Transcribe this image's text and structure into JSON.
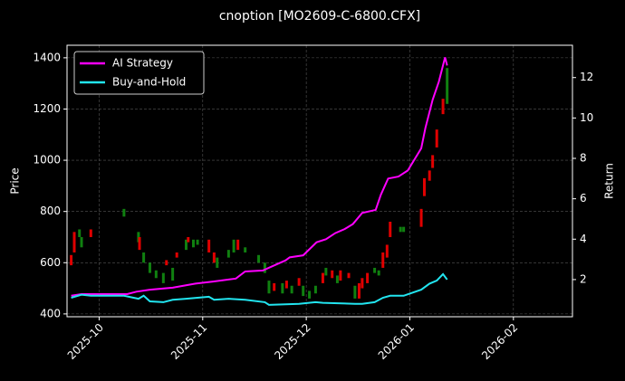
{
  "chart_data": {
    "type": "candlestick",
    "title": "cnoption [MO2609-C-6800.CFX]",
    "ylabel": "Price",
    "y2label": "Return",
    "xlim": [
      -0.31,
      4.57
    ],
    "xticks": [
      {
        "value": 0,
        "label": "2025-10"
      },
      {
        "value": 1,
        "label": "2025-11"
      },
      {
        "value": 2,
        "label": "2025-12"
      },
      {
        "value": 3,
        "label": "2026-01"
      },
      {
        "value": 4,
        "label": "2026-02"
      }
    ],
    "ylim": [
      389,
      1449
    ],
    "yticks": [
      400,
      600,
      800,
      1000,
      1200,
      1400
    ],
    "y2lim": [
      0.16,
      13.6
    ],
    "y2ticks": [
      2,
      4,
      6,
      8,
      10,
      12
    ],
    "grid": true,
    "legend": "upper left",
    "up_color": "#e00000",
    "down_color": "#108010",
    "x": [
      -0.27,
      -0.24,
      -0.19,
      -0.17,
      -0.08,
      0.24,
      0.38,
      0.39,
      0.43,
      0.49,
      0.55,
      0.62,
      0.65,
      0.71,
      0.75,
      0.84,
      0.86,
      0.91,
      0.95,
      1.06,
      1.11,
      1.14,
      1.25,
      1.3,
      1.34,
      1.41,
      1.54,
      1.6,
      1.64,
      1.69,
      1.77,
      1.81,
      1.86,
      1.93,
      1.97,
      2.03,
      2.09,
      2.16,
      2.19,
      2.25,
      2.3,
      2.33,
      2.41,
      2.47,
      2.51,
      2.54,
      2.59,
      2.66,
      2.7,
      2.74,
      2.78,
      2.81,
      2.91,
      2.94,
      3.11,
      3.14,
      3.19,
      3.22,
      3.26,
      3.32,
      3.36
    ],
    "open": [
      590,
      640,
      730,
      700,
      700,
      810,
      720,
      650,
      640,
      600,
      570,
      560,
      590,
      580,
      620,
      690,
      680,
      690,
      690,
      640,
      600,
      620,
      650,
      690,
      650,
      660,
      630,
      600,
      530,
      490,
      520,
      500,
      510,
      510,
      510,
      490,
      510,
      520,
      580,
      540,
      550,
      530,
      540,
      510,
      460,
      500,
      520,
      580,
      570,
      580,
      620,
      700,
      740,
      740,
      740,
      860,
      920,
      970,
      1050,
      1180,
      1360
    ],
    "close": [
      630,
      720,
      700,
      660,
      730,
      780,
      680,
      700,
      600,
      560,
      540,
      520,
      610,
      530,
      640,
      650,
      700,
      660,
      670,
      690,
      640,
      580,
      620,
      640,
      690,
      640,
      600,
      560,
      480,
      520,
      480,
      530,
      480,
      540,
      470,
      460,
      480,
      560,
      550,
      570,
      520,
      570,
      560,
      460,
      520,
      540,
      560,
      560,
      550,
      640,
      670,
      760,
      720,
      720,
      810,
      930,
      960,
      1020,
      1120,
      1240,
      1220
    ],
    "series": [
      {
        "name": "AI Strategy",
        "color": "#ff00ff",
        "axis": "y2",
        "x": [
          -0.27,
          -0.17,
          0.27,
          0.36,
          0.49,
          0.71,
          0.93,
          1.1,
          1.32,
          1.41,
          1.58,
          1.8,
          1.84,
          1.97,
          2.1,
          2.19,
          2.28,
          2.37,
          2.45,
          2.54,
          2.67,
          2.72,
          2.79,
          2.89,
          2.98,
          3.11,
          3.15,
          3.22,
          3.28,
          3.34,
          3.36
        ],
        "values": [
          1.2,
          1.28,
          1.28,
          1.4,
          1.5,
          1.6,
          1.8,
          1.9,
          2.05,
          2.4,
          2.45,
          2.95,
          3.1,
          3.2,
          3.85,
          4.0,
          4.3,
          4.5,
          4.75,
          5.3,
          5.45,
          6.2,
          7.0,
          7.1,
          7.4,
          8.5,
          9.5,
          10.9,
          11.8,
          13.0,
          12.6
        ]
      },
      {
        "name": "Buy-and-Hold",
        "color": "#22e5f0",
        "axis": "y2",
        "x": [
          -0.27,
          -0.17,
          -0.08,
          0.24,
          0.38,
          0.43,
          0.49,
          0.62,
          0.71,
          0.84,
          0.95,
          1.06,
          1.11,
          1.25,
          1.41,
          1.6,
          1.64,
          1.93,
          2.09,
          2.16,
          2.47,
          2.54,
          2.66,
          2.74,
          2.81,
          2.94,
          3.11,
          3.19,
          3.26,
          3.32,
          3.36
        ],
        "values": [
          1.1,
          1.25,
          1.2,
          1.2,
          1.05,
          1.2,
          0.92,
          0.88,
          1.0,
          1.05,
          1.1,
          1.15,
          1.0,
          1.05,
          1.0,
          0.88,
          0.75,
          0.8,
          0.88,
          0.85,
          0.8,
          0.8,
          0.88,
          1.1,
          1.2,
          1.2,
          1.5,
          1.8,
          1.95,
          2.27,
          2.0
        ]
      }
    ]
  }
}
